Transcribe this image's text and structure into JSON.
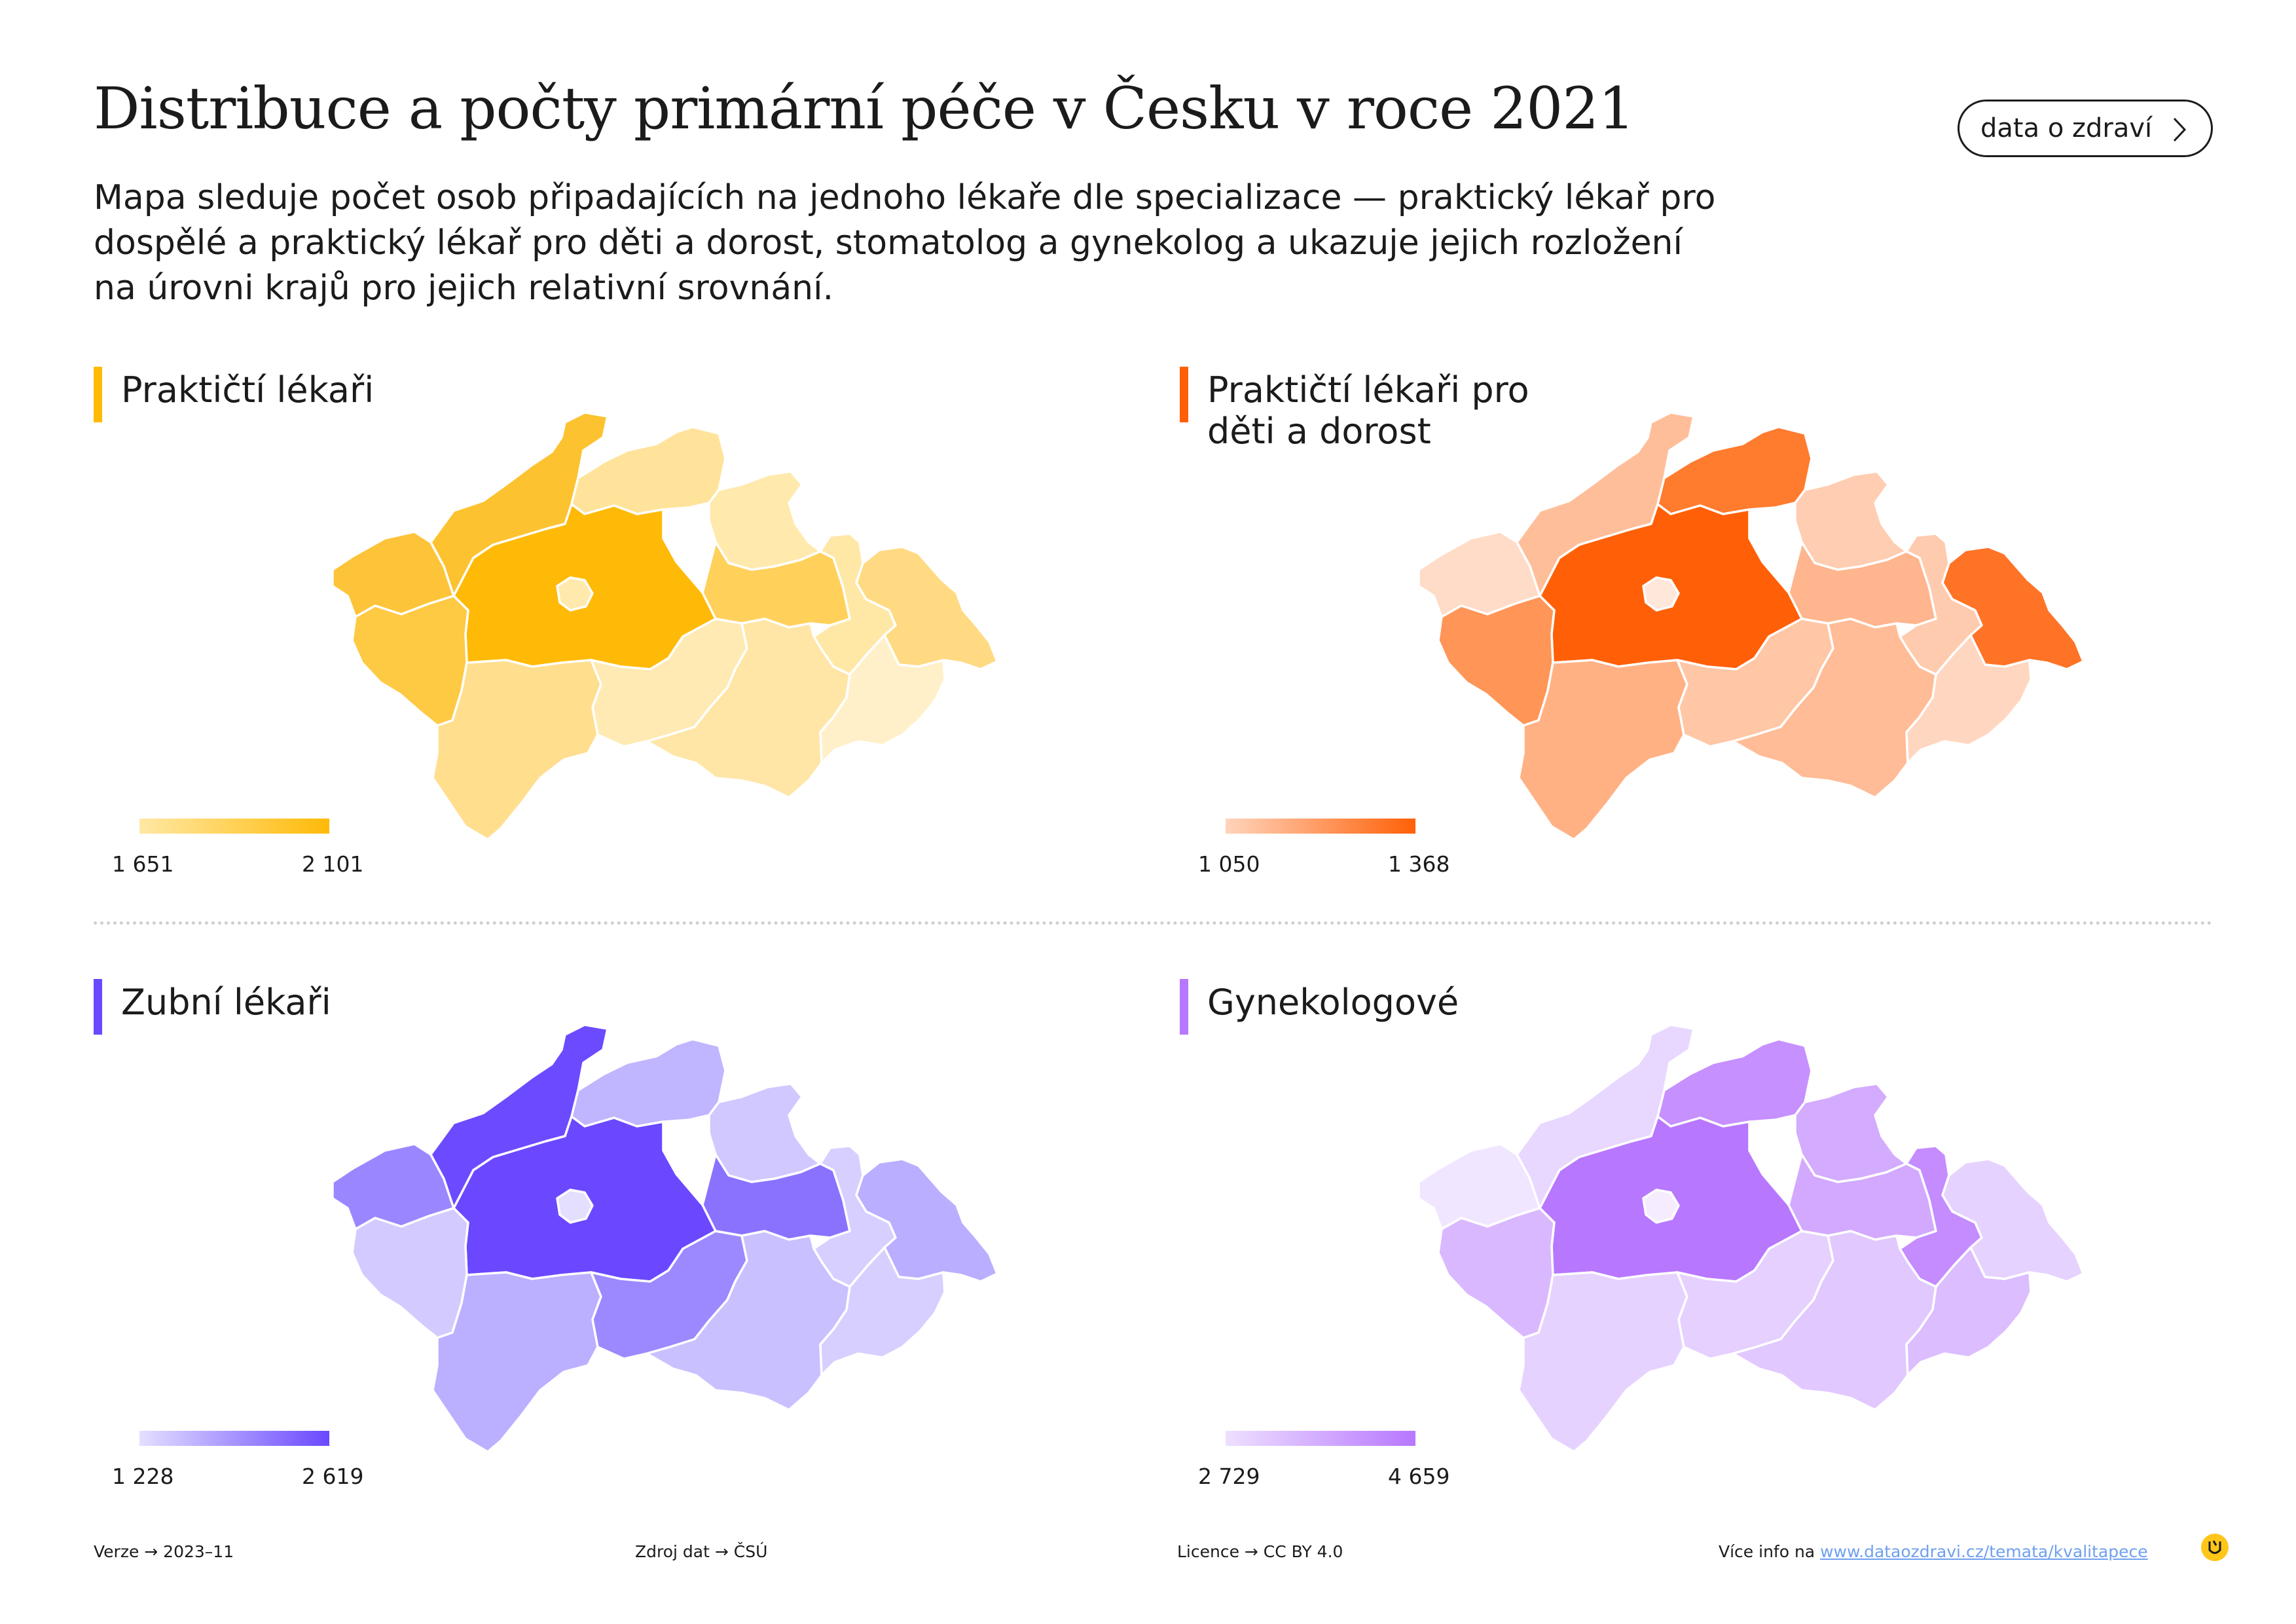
{
  "title": "Distribuce a počty primární péče v Česku v roce 2021",
  "subtitle": "Mapa sleduje počet osob připadajících na jednoho lékaře dle specializace — praktický lékař pro dospělé a praktický lékař pro děti a dorost, stomatolog a gynekolog a ukazuje jejich rozložení na úrovni krajů pro jejich relativní srovnání.",
  "button": {
    "label": "data o zdraví",
    "icon": "chevron-right-icon"
  },
  "panels": [
    {
      "title": "Praktičtí lékaři",
      "accent": "#FFBA08",
      "legend_min": "1 651",
      "legend_max": "2 101",
      "scale_from": "#FFE8A5",
      "scale_to": "#FFBA08",
      "region_colors": {
        "karlovarsky": "#FDC43A",
        "ustecky": "#FDC22F",
        "liberecky": "#FFE39A",
        "kralovehradecky": "#FFE9AD",
        "pardubicky": "#FFD15B",
        "olomoucky": "#FFE7A6",
        "moravskoslezsky": "#FFDA83",
        "stredocesky": "#FFBA08",
        "praha": "#FFE9AD",
        "plzensky": "#FEC943",
        "jihocesky": "#FFDE8E",
        "vysocina": "#FFEAB3",
        "jihomoravsky": "#FFE6A6",
        "zlinsky": "#FFF0CA"
      }
    },
    {
      "title": "Praktičtí lékaři pro děti a dorost",
      "accent": "#FF6007",
      "legend_min": "1 050",
      "legend_max": "1 368",
      "scale_from": "#FFD4BC",
      "scale_to": "#FF6007",
      "region_colors": {
        "karlovarsky": "#FFDCC8",
        "ustecky": "#FFBE9A",
        "liberecky": "#FF7B2E",
        "kralovehradecky": "#FFCDB1",
        "pardubicky": "#FFB58D",
        "olomoucky": "#FFCBAE",
        "moravskoslezsky": "#FF7327",
        "stredocesky": "#FF6007",
        "praha": "#FFE7DA",
        "plzensky": "#FF9556",
        "jihocesky": "#FFB184",
        "vysocina": "#FFC7A6",
        "jihomoravsky": "#FFBC96",
        "zlinsky": "#FFD6C0"
      }
    },
    {
      "title": "Zubní lékaři",
      "accent": "#6A48FF",
      "legend_min": "1 228",
      "legend_max": "2 619",
      "scale_from": "#E4DFFF",
      "scale_to": "#6A48FF",
      "region_colors": {
        "karlovarsky": "#9A87FF",
        "ustecky": "#6C4AFF",
        "liberecky": "#C0B5FF",
        "kralovehradecky": "#D0C8FF",
        "pardubicky": "#8A72FF",
        "olomoucky": "#D6CFFF",
        "moravskoslezsky": "#B9AEFF",
        "stredocesky": "#6B48FF",
        "praha": "#E4DFFF",
        "plzensky": "#D3CBFF",
        "jihocesky": "#BBAFFF",
        "vysocina": "#9C89FF",
        "jihomoravsky": "#C9C0FF",
        "zlinsky": "#D6CFFF"
      }
    },
    {
      "title": "Gynekologové",
      "accent": "#B877FF",
      "legend_min": "2 729",
      "legend_max": "4 659",
      "scale_from": "#EEE0FF",
      "scale_to": "#B877FF",
      "region_colors": {
        "karlovarsky": "#F1E6FF",
        "ustecky": "#E8D7FF",
        "liberecky": "#C690FF",
        "kralovehradecky": "#D3ABFF",
        "pardubicky": "#D2A9FF",
        "olomoucky": "#C48CFF",
        "moravskoslezsky": "#E6D2FF",
        "stredocesky": "#B877FF",
        "praha": "#F5EDFF",
        "plzensky": "#DAB8FF",
        "jihocesky": "#E6D2FF",
        "vysocina": "#E5D0FF",
        "jihomoravsky": "#E1C8FF",
        "zlinsky": "#DCBDFF"
      }
    }
  ],
  "footer": {
    "version": "Verze  →  2023–11",
    "source": "Zdroj dat  →  ČSÚ",
    "license": "Licence  →  CC BY 4.0",
    "more_prefix": "Více info na ",
    "more_link": "www.dataozdravi.cz/temata/kvalitapece"
  }
}
